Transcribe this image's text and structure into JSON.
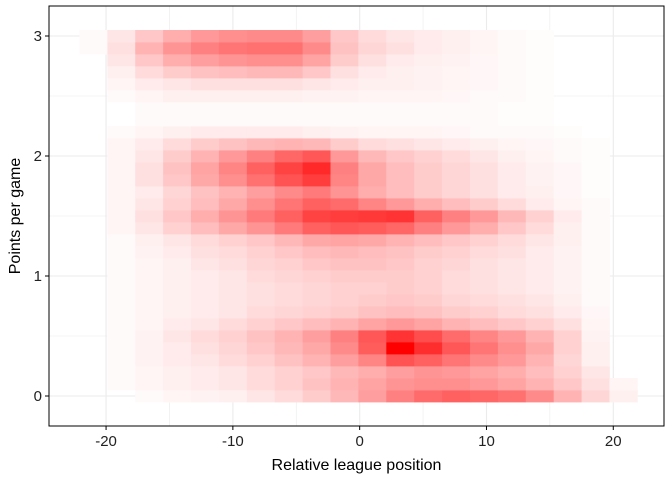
{
  "chart_data": {
    "type": "heatmap",
    "xlabel": "Relative league position",
    "ylabel": "Points per game",
    "xlim": [
      -24.5,
      24
    ],
    "ylim": [
      -0.25,
      3.25
    ],
    "x_ticks": [
      -20,
      -10,
      0,
      10,
      20
    ],
    "y_ticks": [
      0,
      1,
      2,
      3
    ],
    "grid": true,
    "legend": "none",
    "colors": {
      "low": "#ffffff",
      "high": "#ff0000",
      "grid": "#ebebeb",
      "axis": "#000000"
    },
    "cell_width": 2.2,
    "cell_height": 0.1,
    "x_centers": [
      -21,
      -18.8,
      -16.6,
      -14.4,
      -12.2,
      -10,
      -7.8,
      -5.6,
      -3.4,
      -1.2,
      1,
      3.2,
      5.4,
      7.6,
      9.8,
      12,
      14.2,
      16.4,
      18.6,
      20.8
    ],
    "y_centers": [
      0,
      0.1,
      0.2,
      0.3,
      0.4,
      0.5,
      0.6,
      0.7,
      0.8,
      0.9,
      1.0,
      1.1,
      1.2,
      1.3,
      1.4,
      1.5,
      1.6,
      1.7,
      1.8,
      1.9,
      2.0,
      2.1,
      2.2,
      2.3,
      2.4,
      2.5,
      2.6,
      2.7,
      2.8,
      2.9,
      3.0
    ],
    "density": [
      [
        0.0,
        0.0,
        0.02,
        0.04,
        0.05,
        0.06,
        0.1,
        0.14,
        0.2,
        0.28,
        0.38,
        0.5,
        0.58,
        0.62,
        0.6,
        0.56,
        0.46,
        0.3,
        0.16,
        0.06
      ],
      [
        0.0,
        0.02,
        0.04,
        0.06,
        0.08,
        0.1,
        0.14,
        0.18,
        0.24,
        0.3,
        0.36,
        0.42,
        0.44,
        0.44,
        0.4,
        0.36,
        0.3,
        0.22,
        0.12,
        0.04
      ],
      [
        0.0,
        0.02,
        0.04,
        0.06,
        0.08,
        0.1,
        0.14,
        0.18,
        0.22,
        0.28,
        0.32,
        0.38,
        0.42,
        0.4,
        0.36,
        0.32,
        0.26,
        0.18,
        0.1,
        0.0
      ],
      [
        0.0,
        0.02,
        0.05,
        0.08,
        0.1,
        0.14,
        0.18,
        0.24,
        0.3,
        0.38,
        0.48,
        0.68,
        0.62,
        0.54,
        0.46,
        0.4,
        0.3,
        0.16,
        0.06,
        0.0
      ],
      [
        0.0,
        0.02,
        0.05,
        0.08,
        0.12,
        0.16,
        0.22,
        0.28,
        0.34,
        0.46,
        0.64,
        1.0,
        0.82,
        0.66,
        0.54,
        0.44,
        0.34,
        0.18,
        0.06,
        0.0
      ],
      [
        0.0,
        0.02,
        0.05,
        0.1,
        0.14,
        0.18,
        0.24,
        0.3,
        0.38,
        0.5,
        0.66,
        0.8,
        0.7,
        0.58,
        0.48,
        0.4,
        0.3,
        0.18,
        0.05,
        0.0
      ],
      [
        0.0,
        0.02,
        0.04,
        0.08,
        0.1,
        0.14,
        0.18,
        0.22,
        0.26,
        0.3,
        0.36,
        0.4,
        0.36,
        0.3,
        0.26,
        0.22,
        0.18,
        0.12,
        0.04,
        0.0
      ],
      [
        0.0,
        0.02,
        0.04,
        0.06,
        0.08,
        0.1,
        0.14,
        0.16,
        0.18,
        0.2,
        0.24,
        0.26,
        0.24,
        0.2,
        0.18,
        0.14,
        0.12,
        0.08,
        0.03,
        0.0
      ],
      [
        0.0,
        0.02,
        0.04,
        0.06,
        0.08,
        0.1,
        0.12,
        0.14,
        0.16,
        0.18,
        0.2,
        0.22,
        0.2,
        0.16,
        0.14,
        0.12,
        0.1,
        0.06,
        0.02,
        0.0
      ],
      [
        0.0,
        0.02,
        0.04,
        0.06,
        0.08,
        0.1,
        0.12,
        0.14,
        0.16,
        0.18,
        0.18,
        0.2,
        0.18,
        0.14,
        0.12,
        0.1,
        0.08,
        0.05,
        0.02,
        0.0
      ],
      [
        0.0,
        0.02,
        0.04,
        0.06,
        0.08,
        0.1,
        0.14,
        0.16,
        0.18,
        0.2,
        0.2,
        0.2,
        0.18,
        0.14,
        0.12,
        0.1,
        0.08,
        0.05,
        0.02,
        0.0
      ],
      [
        0.0,
        0.02,
        0.04,
        0.06,
        0.1,
        0.12,
        0.16,
        0.18,
        0.22,
        0.24,
        0.24,
        0.22,
        0.18,
        0.16,
        0.12,
        0.1,
        0.08,
        0.05,
        0.02,
        0.0
      ],
      [
        0.0,
        0.02,
        0.05,
        0.08,
        0.12,
        0.14,
        0.18,
        0.22,
        0.26,
        0.28,
        0.26,
        0.24,
        0.2,
        0.18,
        0.14,
        0.12,
        0.08,
        0.05,
        0.02,
        0.0
      ],
      [
        0.0,
        0.02,
        0.06,
        0.1,
        0.14,
        0.18,
        0.22,
        0.28,
        0.34,
        0.36,
        0.34,
        0.3,
        0.26,
        0.22,
        0.18,
        0.14,
        0.1,
        0.06,
        0.02,
        0.0
      ],
      [
        0.0,
        0.04,
        0.1,
        0.18,
        0.26,
        0.34,
        0.42,
        0.52,
        0.62,
        0.66,
        0.64,
        0.6,
        0.5,
        0.4,
        0.32,
        0.22,
        0.14,
        0.06,
        0.02,
        0.0
      ],
      [
        0.0,
        0.04,
        0.12,
        0.22,
        0.32,
        0.42,
        0.52,
        0.62,
        0.74,
        0.76,
        0.78,
        0.8,
        0.62,
        0.5,
        0.4,
        0.28,
        0.18,
        0.08,
        0.02,
        0.0
      ],
      [
        0.0,
        0.04,
        0.1,
        0.18,
        0.26,
        0.34,
        0.44,
        0.54,
        0.62,
        0.58,
        0.48,
        0.4,
        0.32,
        0.26,
        0.2,
        0.14,
        0.08,
        0.04,
        0.02,
        0.0
      ],
      [
        0.0,
        0.04,
        0.08,
        0.16,
        0.24,
        0.3,
        0.38,
        0.46,
        0.52,
        0.42,
        0.32,
        0.26,
        0.2,
        0.16,
        0.12,
        0.08,
        0.06,
        0.03,
        0.01,
        0.0
      ],
      [
        0.0,
        0.04,
        0.12,
        0.22,
        0.34,
        0.44,
        0.56,
        0.68,
        0.76,
        0.48,
        0.34,
        0.26,
        0.2,
        0.16,
        0.12,
        0.08,
        0.05,
        0.03,
        0.01,
        0.0
      ],
      [
        0.0,
        0.04,
        0.12,
        0.24,
        0.36,
        0.48,
        0.62,
        0.74,
        0.84,
        0.5,
        0.34,
        0.26,
        0.2,
        0.16,
        0.12,
        0.08,
        0.05,
        0.03,
        0.01,
        0.0
      ],
      [
        0.0,
        0.04,
        0.1,
        0.2,
        0.3,
        0.4,
        0.5,
        0.6,
        0.66,
        0.4,
        0.28,
        0.22,
        0.18,
        0.14,
        0.1,
        0.06,
        0.04,
        0.02,
        0.01,
        0.0
      ],
      [
        0.0,
        0.04,
        0.08,
        0.14,
        0.2,
        0.24,
        0.28,
        0.3,
        0.28,
        0.2,
        0.14,
        0.12,
        0.1,
        0.08,
        0.06,
        0.04,
        0.03,
        0.02,
        0.01,
        0.0
      ],
      [
        0.0,
        0.02,
        0.04,
        0.06,
        0.08,
        0.08,
        0.08,
        0.08,
        0.06,
        0.05,
        0.04,
        0.04,
        0.04,
        0.03,
        0.02,
        0.02,
        0.02,
        0.01,
        0.0,
        0.0
      ],
      [
        0.0,
        0.0,
        0.02,
        0.02,
        0.02,
        0.02,
        0.02,
        0.02,
        0.02,
        0.02,
        0.02,
        0.02,
        0.02,
        0.02,
        0.02,
        0.01,
        0.01,
        0.0,
        0.0,
        0.0
      ],
      [
        0.0,
        0.0,
        0.02,
        0.02,
        0.02,
        0.02,
        0.02,
        0.02,
        0.02,
        0.02,
        0.02,
        0.02,
        0.02,
        0.02,
        0.02,
        0.01,
        0.01,
        0.0,
        0.0,
        0.0
      ],
      [
        0.0,
        0.02,
        0.04,
        0.06,
        0.06,
        0.06,
        0.06,
        0.06,
        0.05,
        0.05,
        0.04,
        0.04,
        0.04,
        0.03,
        0.02,
        0.02,
        0.01,
        0.0,
        0.0,
        0.0
      ],
      [
        0.0,
        0.04,
        0.08,
        0.1,
        0.12,
        0.12,
        0.12,
        0.12,
        0.1,
        0.08,
        0.06,
        0.06,
        0.05,
        0.04,
        0.03,
        0.02,
        0.01,
        0.0,
        0.0,
        0.0
      ],
      [
        0.0,
        0.06,
        0.14,
        0.2,
        0.24,
        0.26,
        0.28,
        0.28,
        0.22,
        0.12,
        0.08,
        0.06,
        0.05,
        0.04,
        0.03,
        0.02,
        0.01,
        0.0,
        0.0,
        0.0
      ],
      [
        0.0,
        0.1,
        0.22,
        0.32,
        0.38,
        0.42,
        0.44,
        0.44,
        0.36,
        0.2,
        0.12,
        0.08,
        0.06,
        0.05,
        0.03,
        0.02,
        0.01,
        0.0,
        0.0,
        0.0
      ],
      [
        0.02,
        0.12,
        0.3,
        0.42,
        0.5,
        0.54,
        0.56,
        0.56,
        0.46,
        0.24,
        0.16,
        0.12,
        0.08,
        0.06,
        0.04,
        0.02,
        0.01,
        0.0,
        0.0,
        0.0
      ],
      [
        0.02,
        0.1,
        0.22,
        0.32,
        0.4,
        0.44,
        0.46,
        0.46,
        0.38,
        0.22,
        0.14,
        0.1,
        0.08,
        0.06,
        0.04,
        0.02,
        0.01,
        0.0,
        0.0,
        0.0
      ]
    ]
  }
}
